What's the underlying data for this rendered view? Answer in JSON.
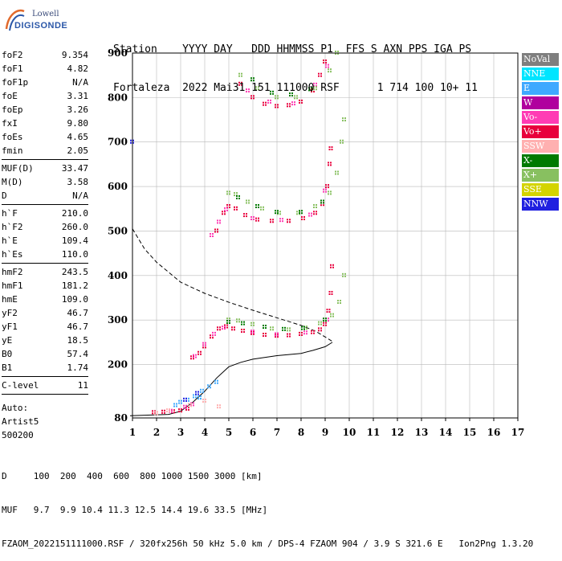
{
  "logo": {
    "line1": "Lowell",
    "line2": "DIGISONDE"
  },
  "header": {
    "row1": "Station    YYYY DAY   DDD HHMMSS P1  FFS S AXN PPS IGA PS",
    "row2": "Fortaleza  2022 Mai31 151 111000 RSF      1 714 100 10+ 11"
  },
  "params": {
    "group1": [
      {
        "label": "foF2",
        "value": "9.354"
      },
      {
        "label": "foF1",
        "value": "4.82"
      },
      {
        "label": "foF1p",
        "value": "N/A"
      },
      {
        "label": "foE",
        "value": "3.31"
      },
      {
        "label": "foEp",
        "value": "3.26"
      },
      {
        "label": "fxI",
        "value": "9.80"
      },
      {
        "label": "foEs",
        "value": "4.65"
      },
      {
        "label": "fmin",
        "value": "2.05"
      }
    ],
    "group2": [
      {
        "label": "MUF(D)",
        "value": "33.47"
      },
      {
        "label": "M(D)",
        "value": "3.58"
      },
      {
        "label": "D",
        "value": "N/A"
      }
    ],
    "group3": [
      {
        "label": "h`F",
        "value": "210.0"
      },
      {
        "label": "h`F2",
        "value": "260.0"
      },
      {
        "label": "h`E",
        "value": "109.4"
      },
      {
        "label": "h`Es",
        "value": "110.0"
      }
    ],
    "group4": [
      {
        "label": "hmF2",
        "value": "243.5"
      },
      {
        "label": "hmF1",
        "value": "181.2"
      },
      {
        "label": "hmE",
        "value": "109.0"
      },
      {
        "label": "yF2",
        "value": "46.7"
      },
      {
        "label": "yF1",
        "value": "46.7"
      },
      {
        "label": "yE",
        "value": "18.5"
      },
      {
        "label": "B0",
        "value": "57.4"
      },
      {
        "label": "B1",
        "value": "1.74"
      }
    ],
    "group5": [
      {
        "label": "C-level",
        "value": "11"
      }
    ],
    "auto": [
      "Auto:",
      "Artist5",
      "500200"
    ]
  },
  "legend": [
    {
      "label": "NoVal",
      "color": "#7f7f7f"
    },
    {
      "label": "NNE",
      "color": "#00e5ff"
    },
    {
      "label": "E",
      "color": "#3fa9ff"
    },
    {
      "label": "W",
      "color": "#b0009e"
    },
    {
      "label": "Vo-",
      "color": "#ff3cb4"
    },
    {
      "label": "Vo+",
      "color": "#e8003c"
    },
    {
      "label": "SSW",
      "color": "#ffb0b0"
    },
    {
      "label": "X-",
      "color": "#007a00"
    },
    {
      "label": "X+",
      "color": "#88c060"
    },
    {
      "label": "SSE",
      "color": "#d4d400"
    },
    {
      "label": "NNW",
      "color": "#2020e0"
    }
  ],
  "footer": {
    "row1": "D     100  200  400  600  800 1000 1500 3000 [km]",
    "row2": "MUF   9.7  9.9 10.4 11.3 12.5 14.4 19.6 33.5 [MHz]",
    "row3": "FZAOM_2022151111000.RSF / 320fx256h 50 kHz 5.0 km / DPS-4 FZAOM 904 / 3.9 S 321.6 E   Ion2Png 1.3.20"
  },
  "chart_data": {
    "type": "scatter",
    "xlim": [
      1,
      17
    ],
    "ylim": [
      80,
      900
    ],
    "x_ticks": [
      1,
      2,
      3,
      4,
      5,
      6,
      7,
      8,
      9,
      10,
      11,
      12,
      13,
      14,
      15,
      16,
      17
    ],
    "y_ticks": [
      80,
      200,
      300,
      400,
      500,
      600,
      700,
      800,
      900
    ],
    "grid": true,
    "legend_placement": "right",
    "series": [
      {
        "name": "Vo+",
        "color": "#e8003c",
        "points": [
          [
            3.5,
            215
          ],
          [
            3.8,
            225
          ],
          [
            4.0,
            240
          ],
          [
            4.3,
            262
          ],
          [
            4.6,
            280
          ],
          [
            4.9,
            285
          ],
          [
            5.2,
            280
          ],
          [
            5.6,
            275
          ],
          [
            6.0,
            270
          ],
          [
            6.5,
            266
          ],
          [
            7.0,
            264
          ],
          [
            7.5,
            265
          ],
          [
            8.0,
            268
          ],
          [
            8.5,
            272
          ],
          [
            8.8,
            278
          ],
          [
            9.0,
            290
          ],
          [
            9.15,
            320
          ],
          [
            9.25,
            360
          ],
          [
            9.3,
            420
          ],
          [
            4.5,
            500
          ],
          [
            4.8,
            540
          ],
          [
            5.0,
            555
          ],
          [
            5.3,
            550
          ],
          [
            5.7,
            535
          ],
          [
            6.2,
            525
          ],
          [
            6.8,
            522
          ],
          [
            7.5,
            522
          ],
          [
            8.1,
            528
          ],
          [
            8.6,
            540
          ],
          [
            8.9,
            560
          ],
          [
            9.1,
            600
          ],
          [
            9.2,
            650
          ],
          [
            9.25,
            685
          ],
          [
            5.5,
            830
          ],
          [
            6.0,
            800
          ],
          [
            6.5,
            785
          ],
          [
            7.0,
            780
          ],
          [
            7.5,
            782
          ],
          [
            8.0,
            790
          ],
          [
            8.5,
            815
          ],
          [
            8.8,
            850
          ],
          [
            9.0,
            880
          ],
          [
            1.9,
            92
          ],
          [
            2.3,
            93
          ],
          [
            2.7,
            94
          ],
          [
            3.0,
            96
          ],
          [
            3.3,
            100
          ]
        ]
      },
      {
        "name": "Vo-",
        "color": "#ff3cb4",
        "points": [
          [
            3.6,
            218
          ],
          [
            4.0,
            245
          ],
          [
            4.4,
            268
          ],
          [
            4.8,
            282
          ],
          [
            6.0,
            273
          ],
          [
            7.0,
            267
          ],
          [
            8.2,
            271
          ],
          [
            9.1,
            300
          ],
          [
            4.3,
            490
          ],
          [
            4.6,
            520
          ],
          [
            4.9,
            548
          ],
          [
            6.0,
            528
          ],
          [
            7.2,
            524
          ],
          [
            8.4,
            536
          ],
          [
            9.0,
            590
          ],
          [
            5.8,
            815
          ],
          [
            6.7,
            790
          ],
          [
            7.7,
            786
          ],
          [
            8.6,
            828
          ],
          [
            9.1,
            870
          ],
          [
            2.6,
            95
          ],
          [
            3.2,
            104
          ],
          [
            3.5,
            110
          ]
        ]
      },
      {
        "name": "X+",
        "color": "#88c060",
        "points": [
          [
            5.0,
            300
          ],
          [
            5.4,
            298
          ],
          [
            6.0,
            290
          ],
          [
            6.8,
            280
          ],
          [
            7.5,
            278
          ],
          [
            8.2,
            282
          ],
          [
            8.8,
            292
          ],
          [
            9.3,
            310
          ],
          [
            9.6,
            340
          ],
          [
            9.8,
            400
          ],
          [
            5.0,
            585
          ],
          [
            5.3,
            582
          ],
          [
            5.8,
            565
          ],
          [
            6.4,
            550
          ],
          [
            7.1,
            540
          ],
          [
            7.9,
            540
          ],
          [
            8.6,
            555
          ],
          [
            9.2,
            585
          ],
          [
            9.5,
            630
          ],
          [
            9.7,
            700
          ],
          [
            9.8,
            750
          ],
          [
            5.5,
            850
          ],
          [
            6.2,
            820
          ],
          [
            7.0,
            800
          ],
          [
            7.8,
            800
          ],
          [
            8.6,
            820
          ],
          [
            9.2,
            860
          ],
          [
            9.5,
            900
          ]
        ]
      },
      {
        "name": "X-",
        "color": "#007a00",
        "points": [
          [
            5.0,
            295
          ],
          [
            5.6,
            292
          ],
          [
            6.5,
            284
          ],
          [
            7.3,
            279
          ],
          [
            8.1,
            281
          ],
          [
            9.0,
            300
          ],
          [
            5.4,
            575
          ],
          [
            6.2,
            555
          ],
          [
            7.0,
            542
          ],
          [
            8.0,
            542
          ],
          [
            8.9,
            565
          ],
          [
            6.0,
            840
          ],
          [
            6.8,
            810
          ],
          [
            7.6,
            806
          ],
          [
            8.4,
            818
          ]
        ]
      },
      {
        "name": "E",
        "color": "#3fa9ff",
        "points": [
          [
            3.0,
            115
          ],
          [
            3.3,
            120
          ],
          [
            3.6,
            128
          ],
          [
            3.9,
            140
          ],
          [
            4.2,
            150
          ],
          [
            4.5,
            160
          ],
          [
            2.8,
            108
          ],
          [
            3.8,
            125
          ]
        ]
      },
      {
        "name": "NNW",
        "color": "#2020e0",
        "points": [
          [
            1.0,
            700
          ],
          [
            3.2,
            120
          ],
          [
            3.7,
            135
          ]
        ]
      },
      {
        "name": "SSW",
        "color": "#ffb0b0",
        "points": [
          [
            2.0,
            90
          ],
          [
            2.5,
            96
          ],
          [
            3.4,
            108
          ],
          [
            4.0,
            118
          ],
          [
            4.6,
            105
          ]
        ]
      }
    ],
    "lines": [
      {
        "name": "profile",
        "style": "solid",
        "points": [
          [
            0.9,
            85
          ],
          [
            2.5,
            88
          ],
          [
            3.0,
            95
          ],
          [
            3.5,
            115
          ],
          [
            4.0,
            140
          ],
          [
            4.5,
            170
          ],
          [
            5.0,
            195
          ],
          [
            5.5,
            205
          ],
          [
            6.0,
            212
          ],
          [
            7.0,
            220
          ],
          [
            8.0,
            225
          ],
          [
            8.5,
            232
          ],
          [
            9.0,
            240
          ],
          [
            9.3,
            250
          ]
        ]
      },
      {
        "name": "muf",
        "style": "dashed",
        "points": [
          [
            1.0,
            505
          ],
          [
            1.5,
            460
          ],
          [
            2.0,
            430
          ],
          [
            3.0,
            385
          ],
          [
            4.0,
            360
          ],
          [
            5.0,
            340
          ],
          [
            6.0,
            322
          ],
          [
            7.0,
            305
          ],
          [
            8.0,
            288
          ],
          [
            8.6,
            275
          ],
          [
            9.0,
            262
          ],
          [
            9.3,
            252
          ]
        ]
      }
    ]
  }
}
